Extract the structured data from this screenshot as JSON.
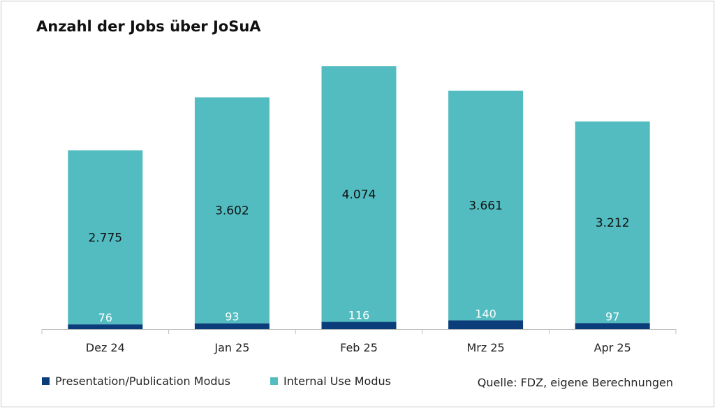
{
  "title": "Anzahl der Jobs über JoSuA",
  "source": "Quelle: FDZ, eigene Berechnungen",
  "colors": {
    "presentation": "#0a3d7a",
    "internal": "#52bcc0",
    "axis": "#bfbfbf",
    "label_dark": "#111111",
    "label_light": "#ffffff"
  },
  "legend": [
    {
      "name": "Presentation/Publication Modus",
      "color": "#0a3d7a"
    },
    {
      "name": "Internal Use Modus",
      "color": "#52bcc0"
    }
  ],
  "chart_data": {
    "type": "bar",
    "stacked": true,
    "title": "Anzahl der Jobs über JoSuA",
    "xlabel": "",
    "ylabel": "",
    "categories": [
      "Dez 24",
      "Jan 25",
      "Feb 25",
      "Mrz 25",
      "Apr 25"
    ],
    "series": [
      {
        "name": "Presentation/Publication Modus",
        "values": [
          76,
          93,
          116,
          140,
          97
        ],
        "labels": [
          "76",
          "93",
          "116",
          "140",
          "97"
        ]
      },
      {
        "name": "Internal Use Modus",
        "values": [
          2775,
          3602,
          4074,
          3661,
          3212
        ],
        "labels": [
          "2.775",
          "3.602",
          "4.074",
          "3.661",
          "3.212"
        ]
      }
    ],
    "ylim": [
      0,
      4190
    ],
    "grid": false,
    "legend_position": "bottom-left"
  }
}
